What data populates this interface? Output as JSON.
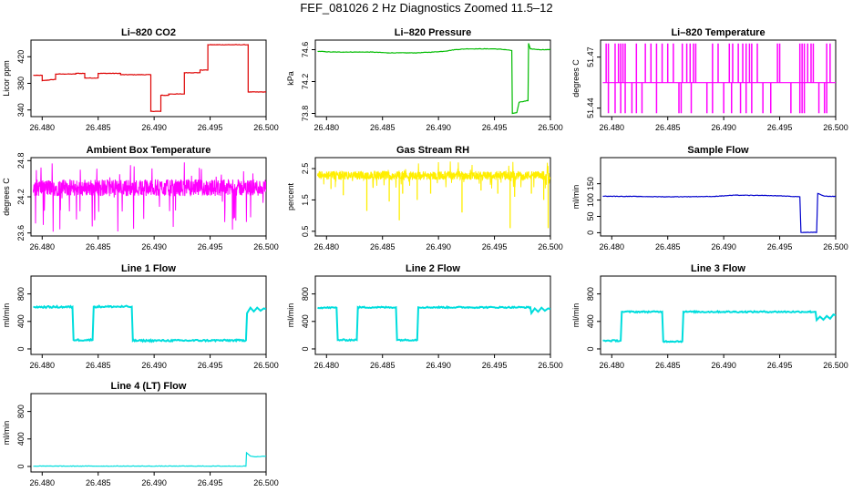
{
  "page_title": "FEF_081026  2 Hz Diagnostics Zoomed 11.5–12",
  "chart_data": [
    {
      "type": "line",
      "title": "Li–820 CO2",
      "ylabel": "Licor ppm",
      "xlabel": "",
      "color": "#dd0000",
      "xlim": [
        26.479,
        26.5
      ],
      "ylim": [
        330,
        445
      ],
      "xticks": [
        "26.480",
        "26.485",
        "26.490",
        "26.495",
        "26.500"
      ],
      "yticks": [
        "340",
        "380",
        "420"
      ],
      "series": [
        {
          "x": [
            26.4792,
            26.48,
            26.48,
            26.4812,
            26.4812,
            26.483,
            26.483,
            26.4838,
            26.4838,
            26.485,
            26.485,
            26.487,
            26.487,
            26.4897,
            26.4897,
            26.4906,
            26.4906,
            26.4913,
            26.4913,
            26.4927,
            26.4927,
            26.4941,
            26.4941,
            26.4948,
            26.4948,
            26.4984,
            26.4984,
            26.5
          ],
          "y": [
            392,
            392,
            384,
            386,
            394,
            394,
            395,
            395,
            388,
            388,
            395,
            395,
            393,
            393,
            338,
            338,
            362,
            362,
            364,
            364,
            396,
            396,
            400,
            400,
            438,
            438,
            367,
            367
          ]
        }
      ]
    },
    {
      "type": "line",
      "title": "Li–820 Pressure",
      "ylabel": "kPa",
      "xlabel": "",
      "color": "#00bb00",
      "xlim": [
        26.479,
        26.5
      ],
      "ylim": [
        73.76,
        74.72
      ],
      "xticks": [
        "26.480",
        "26.485",
        "26.490",
        "26.495",
        "26.500"
      ],
      "yticks": [
        "73.8",
        "74.2",
        "74.6"
      ],
      "series": [
        {
          "x": [
            26.4792,
            26.4805,
            26.4815,
            26.483,
            26.484,
            26.4855,
            26.487,
            26.488,
            26.4895,
            26.4905,
            26.4915,
            26.4925,
            26.4935,
            26.495,
            26.496,
            26.49655,
            26.4966,
            26.497,
            26.4972,
            26.498,
            26.49805,
            26.4982,
            26.499,
            26.5
          ],
          "y": [
            74.58,
            74.57,
            74.57,
            74.57,
            74.57,
            74.56,
            74.56,
            74.56,
            74.57,
            74.58,
            74.6,
            74.61,
            74.61,
            74.61,
            74.6,
            74.59,
            73.8,
            73.81,
            73.94,
            73.96,
            74.68,
            74.61,
            74.6,
            74.6
          ]
        }
      ]
    },
    {
      "type": "line",
      "title": "Li–820 Temperature",
      "ylabel": "degrees C",
      "xlabel": "",
      "color": "#ff00ff",
      "xlim": [
        26.479,
        26.5
      ],
      "ylim": [
        51.435,
        51.48
      ],
      "xticks": [
        "26.480",
        "26.485",
        "26.490",
        "26.495",
        "26.500"
      ],
      "yticks": [
        "51.44",
        "51.47"
      ],
      "baseline": 51.455,
      "spikes_up": [
        26.4795,
        26.4797,
        26.4803,
        26.4806,
        26.4808,
        26.481,
        26.4812,
        26.4822,
        26.483,
        26.4835,
        26.484,
        26.4845,
        26.485,
        26.4855,
        26.4863,
        26.4867,
        26.487,
        26.4873,
        26.4875,
        26.489,
        26.4895,
        26.4905,
        26.4908,
        26.4913,
        26.4917,
        26.492,
        26.4923,
        26.4925,
        26.493,
        26.4948,
        26.495,
        26.4968,
        26.497,
        26.4972,
        26.4975,
        26.4978,
        26.498,
        26.4992,
        26.4995
      ],
      "spikes_down": [
        26.4797,
        26.4803,
        26.4808,
        26.4812,
        26.4818,
        26.4822,
        26.4827,
        26.484,
        26.486,
        26.4862,
        26.4871,
        26.4885,
        26.489,
        26.49,
        26.4907,
        26.4915,
        26.492,
        26.4925,
        26.4935,
        26.4942,
        26.496,
        26.4968,
        26.497,
        26.4972,
        26.4985,
        26.499,
        26.4992
      ],
      "max": 51.478,
      "min": 51.437
    },
    {
      "type": "line",
      "title": "Ambient Box Temperature",
      "ylabel": "degrees C",
      "xlabel": "",
      "color": "#ff00ff",
      "xlim": [
        26.479,
        26.5
      ],
      "ylim": [
        23.55,
        24.85
      ],
      "xticks": [
        "26.480",
        "26.485",
        "26.490",
        "26.495",
        "26.500"
      ],
      "yticks": [
        "23.6",
        "24.2",
        "24.8"
      ],
      "noise": {
        "center": 24.35,
        "band": 0.14,
        "max": 24.78,
        "min": 23.62
      }
    },
    {
      "type": "line",
      "title": "Gas Stream RH",
      "ylabel": "percent",
      "xlabel": "",
      "color": "#ffee00",
      "xlim": [
        26.479,
        26.5
      ],
      "ylim": [
        0.35,
        2.85
      ],
      "xticks": [
        "26.480",
        "26.485",
        "26.490",
        "26.495",
        "26.500"
      ],
      "yticks": [
        "0.5",
        "1.5",
        "2.5"
      ],
      "noise": {
        "center": 2.28,
        "band": 0.14,
        "max": 2.75,
        "min": 1.85
      },
      "dips": [
        [
          26.4804,
          1.85
        ],
        [
          26.4815,
          1.65
        ],
        [
          26.4836,
          1.15
        ],
        [
          26.4856,
          1.45
        ],
        [
          26.4865,
          0.85
        ],
        [
          26.4868,
          1.7
        ],
        [
          26.4881,
          1.5
        ],
        [
          26.4893,
          1.7
        ],
        [
          26.4921,
          1.1
        ],
        [
          26.4938,
          1.8
        ],
        [
          26.4953,
          1.7
        ],
        [
          26.4964,
          0.6
        ],
        [
          26.4968,
          1.6
        ],
        [
          26.4983,
          1.7
        ],
        [
          26.4994,
          1.5
        ],
        [
          26.4998,
          0.6
        ]
      ]
    },
    {
      "type": "line",
      "title": "Sample Flow",
      "ylabel": "ml/min",
      "xlabel": "",
      "color": "#0000cc",
      "xlim": [
        26.479,
        26.5
      ],
      "ylim": [
        -10,
        230
      ],
      "xticks": [
        "26.480",
        "26.485",
        "26.490",
        "26.495",
        "26.500"
      ],
      "yticks": [
        "0",
        "50",
        "100",
        "150"
      ],
      "series": [
        {
          "x": [
            26.4792,
            26.485,
            26.489,
            26.491,
            26.4935,
            26.495,
            26.4968,
            26.4969,
            26.4983,
            26.4984,
            26.499,
            26.5
          ],
          "y": [
            112,
            110,
            111,
            115,
            114,
            113,
            110,
            1,
            1,
            120,
            112,
            111
          ]
        }
      ]
    },
    {
      "type": "line",
      "title": "Line 1 Flow",
      "ylabel": "ml/min",
      "xlabel": "",
      "color": "#00dddd",
      "xlim": [
        26.479,
        26.5
      ],
      "ylim": [
        -80,
        1060
      ],
      "xticks": [
        "26.480",
        "26.485",
        "26.490",
        "26.495",
        "26.500"
      ],
      "yticks": [
        "0",
        "400",
        "800"
      ],
      "series": [
        {
          "x": [
            26.4792,
            26.4827,
            26.4828,
            26.4845,
            26.4846,
            26.488,
            26.4881,
            26.4982,
            26.4983,
            26.4986,
            26.4989,
            26.4992,
            26.4995,
            26.4998,
            26.5
          ],
          "y": [
            610,
            610,
            130,
            130,
            615,
            615,
            120,
            125,
            520,
            600,
            545,
            600,
            555,
            590,
            580
          ]
        }
      ],
      "band": 50
    },
    {
      "type": "line",
      "title": "Line 2 Flow",
      "ylabel": "ml/min",
      "xlabel": "",
      "color": "#00dddd",
      "xlim": [
        26.479,
        26.5
      ],
      "ylim": [
        -80,
        1060
      ],
      "xticks": [
        "26.480",
        "26.485",
        "26.490",
        "26.495",
        "26.500"
      ],
      "yticks": [
        "0",
        "400",
        "800"
      ],
      "series": [
        {
          "x": [
            26.4792,
            26.4809,
            26.481,
            26.4827,
            26.4828,
            26.4862,
            26.4863,
            26.4881,
            26.4882,
            26.4982,
            26.4983,
            26.4986,
            26.4989,
            26.4992,
            26.4995,
            26.4998,
            26.5
          ],
          "y": [
            600,
            600,
            130,
            130,
            605,
            605,
            130,
            130,
            605,
            605,
            520,
            590,
            540,
            600,
            555,
            590,
            580
          ]
        }
      ],
      "band": 40
    },
    {
      "type": "line",
      "title": "Line 3 Flow",
      "ylabel": "ml/min",
      "xlabel": "",
      "color": "#00dddd",
      "xlim": [
        26.479,
        26.5
      ],
      "ylim": [
        -80,
        1060
      ],
      "xticks": [
        "26.480",
        "26.485",
        "26.490",
        "26.495",
        "26.500"
      ],
      "yticks": [
        "0",
        "400",
        "800"
      ],
      "series": [
        {
          "x": [
            26.4792,
            26.4808,
            26.4809,
            26.4845,
            26.4846,
            26.4863,
            26.4864,
            26.4982,
            26.4983,
            26.4986,
            26.4989,
            26.4992,
            26.4995,
            26.4998,
            26.5
          ],
          "y": [
            120,
            120,
            540,
            540,
            110,
            110,
            540,
            540,
            420,
            470,
            425,
            480,
            440,
            500,
            490
          ]
        }
      ],
      "band": 40
    },
    {
      "type": "line",
      "title": "Line 4 (LT) Flow",
      "ylabel": "ml/min",
      "xlabel": "",
      "color": "#00dddd",
      "xlim": [
        26.479,
        26.5
      ],
      "ylim": [
        -80,
        1060
      ],
      "xticks": [
        "26.480",
        "26.485",
        "26.490",
        "26.495",
        "26.500"
      ],
      "yticks": [
        "0",
        "400",
        "800"
      ],
      "series": [
        {
          "x": [
            26.4792,
            26.4982,
            26.49825,
            26.4986,
            26.499,
            26.5
          ],
          "y": [
            5,
            5,
            200,
            150,
            140,
            150
          ]
        }
      ]
    }
  ]
}
